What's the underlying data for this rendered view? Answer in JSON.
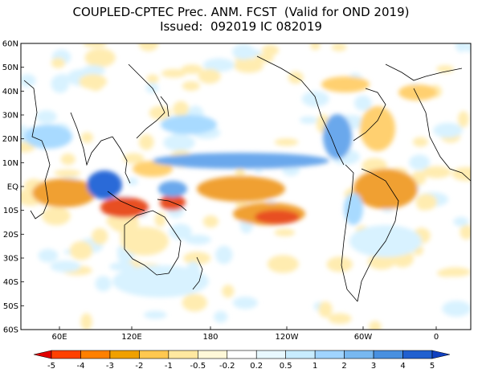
{
  "title": {
    "line1": "COUPLED-CPTEC Prec. ANM. FCST  (Valid for OND 2019)",
    "line2": "Issued:  092019 IC 082019"
  },
  "lat_labels": [
    "60N",
    "50N",
    "40N",
    "30N",
    "20N",
    "10N",
    "EQ",
    "10S",
    "20S",
    "30S",
    "40S",
    "50S",
    "60S"
  ],
  "lon_labels": [
    "60E",
    "120E",
    "180",
    "120W",
    "60W",
    "0"
  ],
  "colorbar": {
    "labels": [
      "-5",
      "-4",
      "-3",
      "-2",
      "-1",
      "-0.5",
      "-0.2",
      "0.2",
      "0.5",
      "1",
      "2",
      "3",
      "4",
      "5"
    ],
    "colors": [
      "#e00000",
      "#ff4000",
      "#ff8000",
      "#f0a000",
      "#ffc850",
      "#ffe8a0",
      "#fff8d8",
      "#ffffff",
      "#e8f8ff",
      "#c8ecff",
      "#a0d4ff",
      "#78b8f0",
      "#4890e0",
      "#2060d0",
      "#1040c0"
    ]
  },
  "map_colors": {
    "dry_strong": "#e85020",
    "dry": "#f0a030",
    "dry_light": "#ffd070",
    "dry_faint": "#ffecb0",
    "wet_faint": "#d8f2ff",
    "wet_light": "#a8daff",
    "wet": "#6aa8ec",
    "wet_strong": "#2c6ad8",
    "land_outline": "#000000"
  }
}
